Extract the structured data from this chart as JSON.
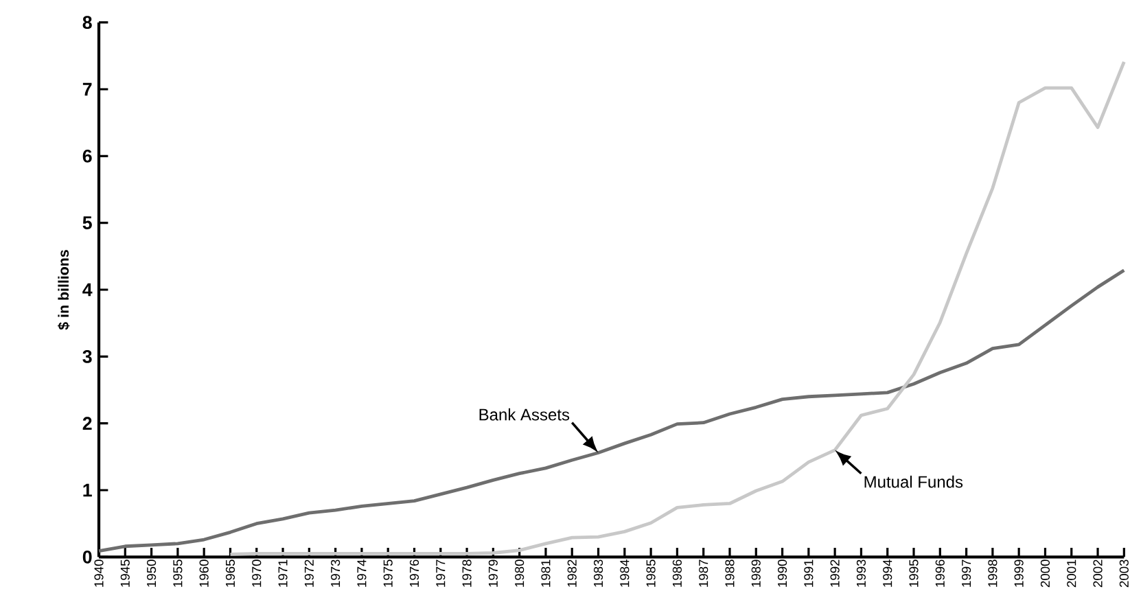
{
  "chart_data": {
    "type": "line",
    "ylabel": "$ in billions",
    "categories": [
      "1940",
      "1945",
      "1950",
      "1955",
      "1960",
      "1965",
      "1970",
      "1971",
      "1972",
      "1973",
      "1974",
      "1975",
      "1976",
      "1977",
      "1978",
      "1979",
      "1980",
      "1981",
      "1982",
      "1983",
      "1984",
      "1985",
      "1986",
      "1987",
      "1988",
      "1989",
      "1990",
      "1991",
      "1992",
      "1993",
      "1994",
      "1995",
      "1996",
      "1997",
      "1998",
      "1999",
      "2000",
      "2001",
      "2002",
      "2003"
    ],
    "series": [
      {
        "color": "#6e6e6e",
        "values": [
          0.09,
          0.16,
          0.18,
          0.2,
          0.26,
          0.37,
          0.5,
          0.57,
          0.66,
          0.7,
          0.76,
          0.8,
          0.84,
          0.94,
          1.04,
          1.15,
          1.25,
          1.33,
          1.45,
          1.56,
          1.7,
          1.83,
          1.99,
          2.01,
          2.14,
          2.24,
          2.36,
          2.4,
          2.42,
          2.44,
          2.46,
          2.59,
          2.76,
          2.9,
          3.12,
          3.18,
          3.47,
          3.76,
          4.04,
          4.29
        ]
      },
      {
        "color": "#c8c8c8",
        "values": [
          null,
          null,
          null,
          null,
          null,
          0.04,
          0.05,
          0.05,
          0.05,
          0.05,
          0.05,
          0.05,
          0.05,
          0.05,
          0.05,
          0.06,
          0.1,
          0.2,
          0.29,
          0.3,
          0.38,
          0.51,
          0.74,
          0.78,
          0.8,
          0.99,
          1.13,
          1.42,
          1.6,
          2.12,
          2.22,
          2.73,
          3.51,
          4.54,
          5.52,
          6.8,
          7.02,
          7.02,
          6.43,
          7.41
        ]
      }
    ],
    "annotations": [
      {
        "text": "Bank Assets",
        "x": "1983",
        "y": 1.56
      },
      {
        "text": "Mutual Funds",
        "x": "1992",
        "y": 1.6
      }
    ],
    "ylim": [
      0,
      8
    ],
    "yticks": [
      0,
      1,
      2,
      3,
      4,
      5,
      6,
      7,
      8
    ],
    "marker": "none"
  }
}
